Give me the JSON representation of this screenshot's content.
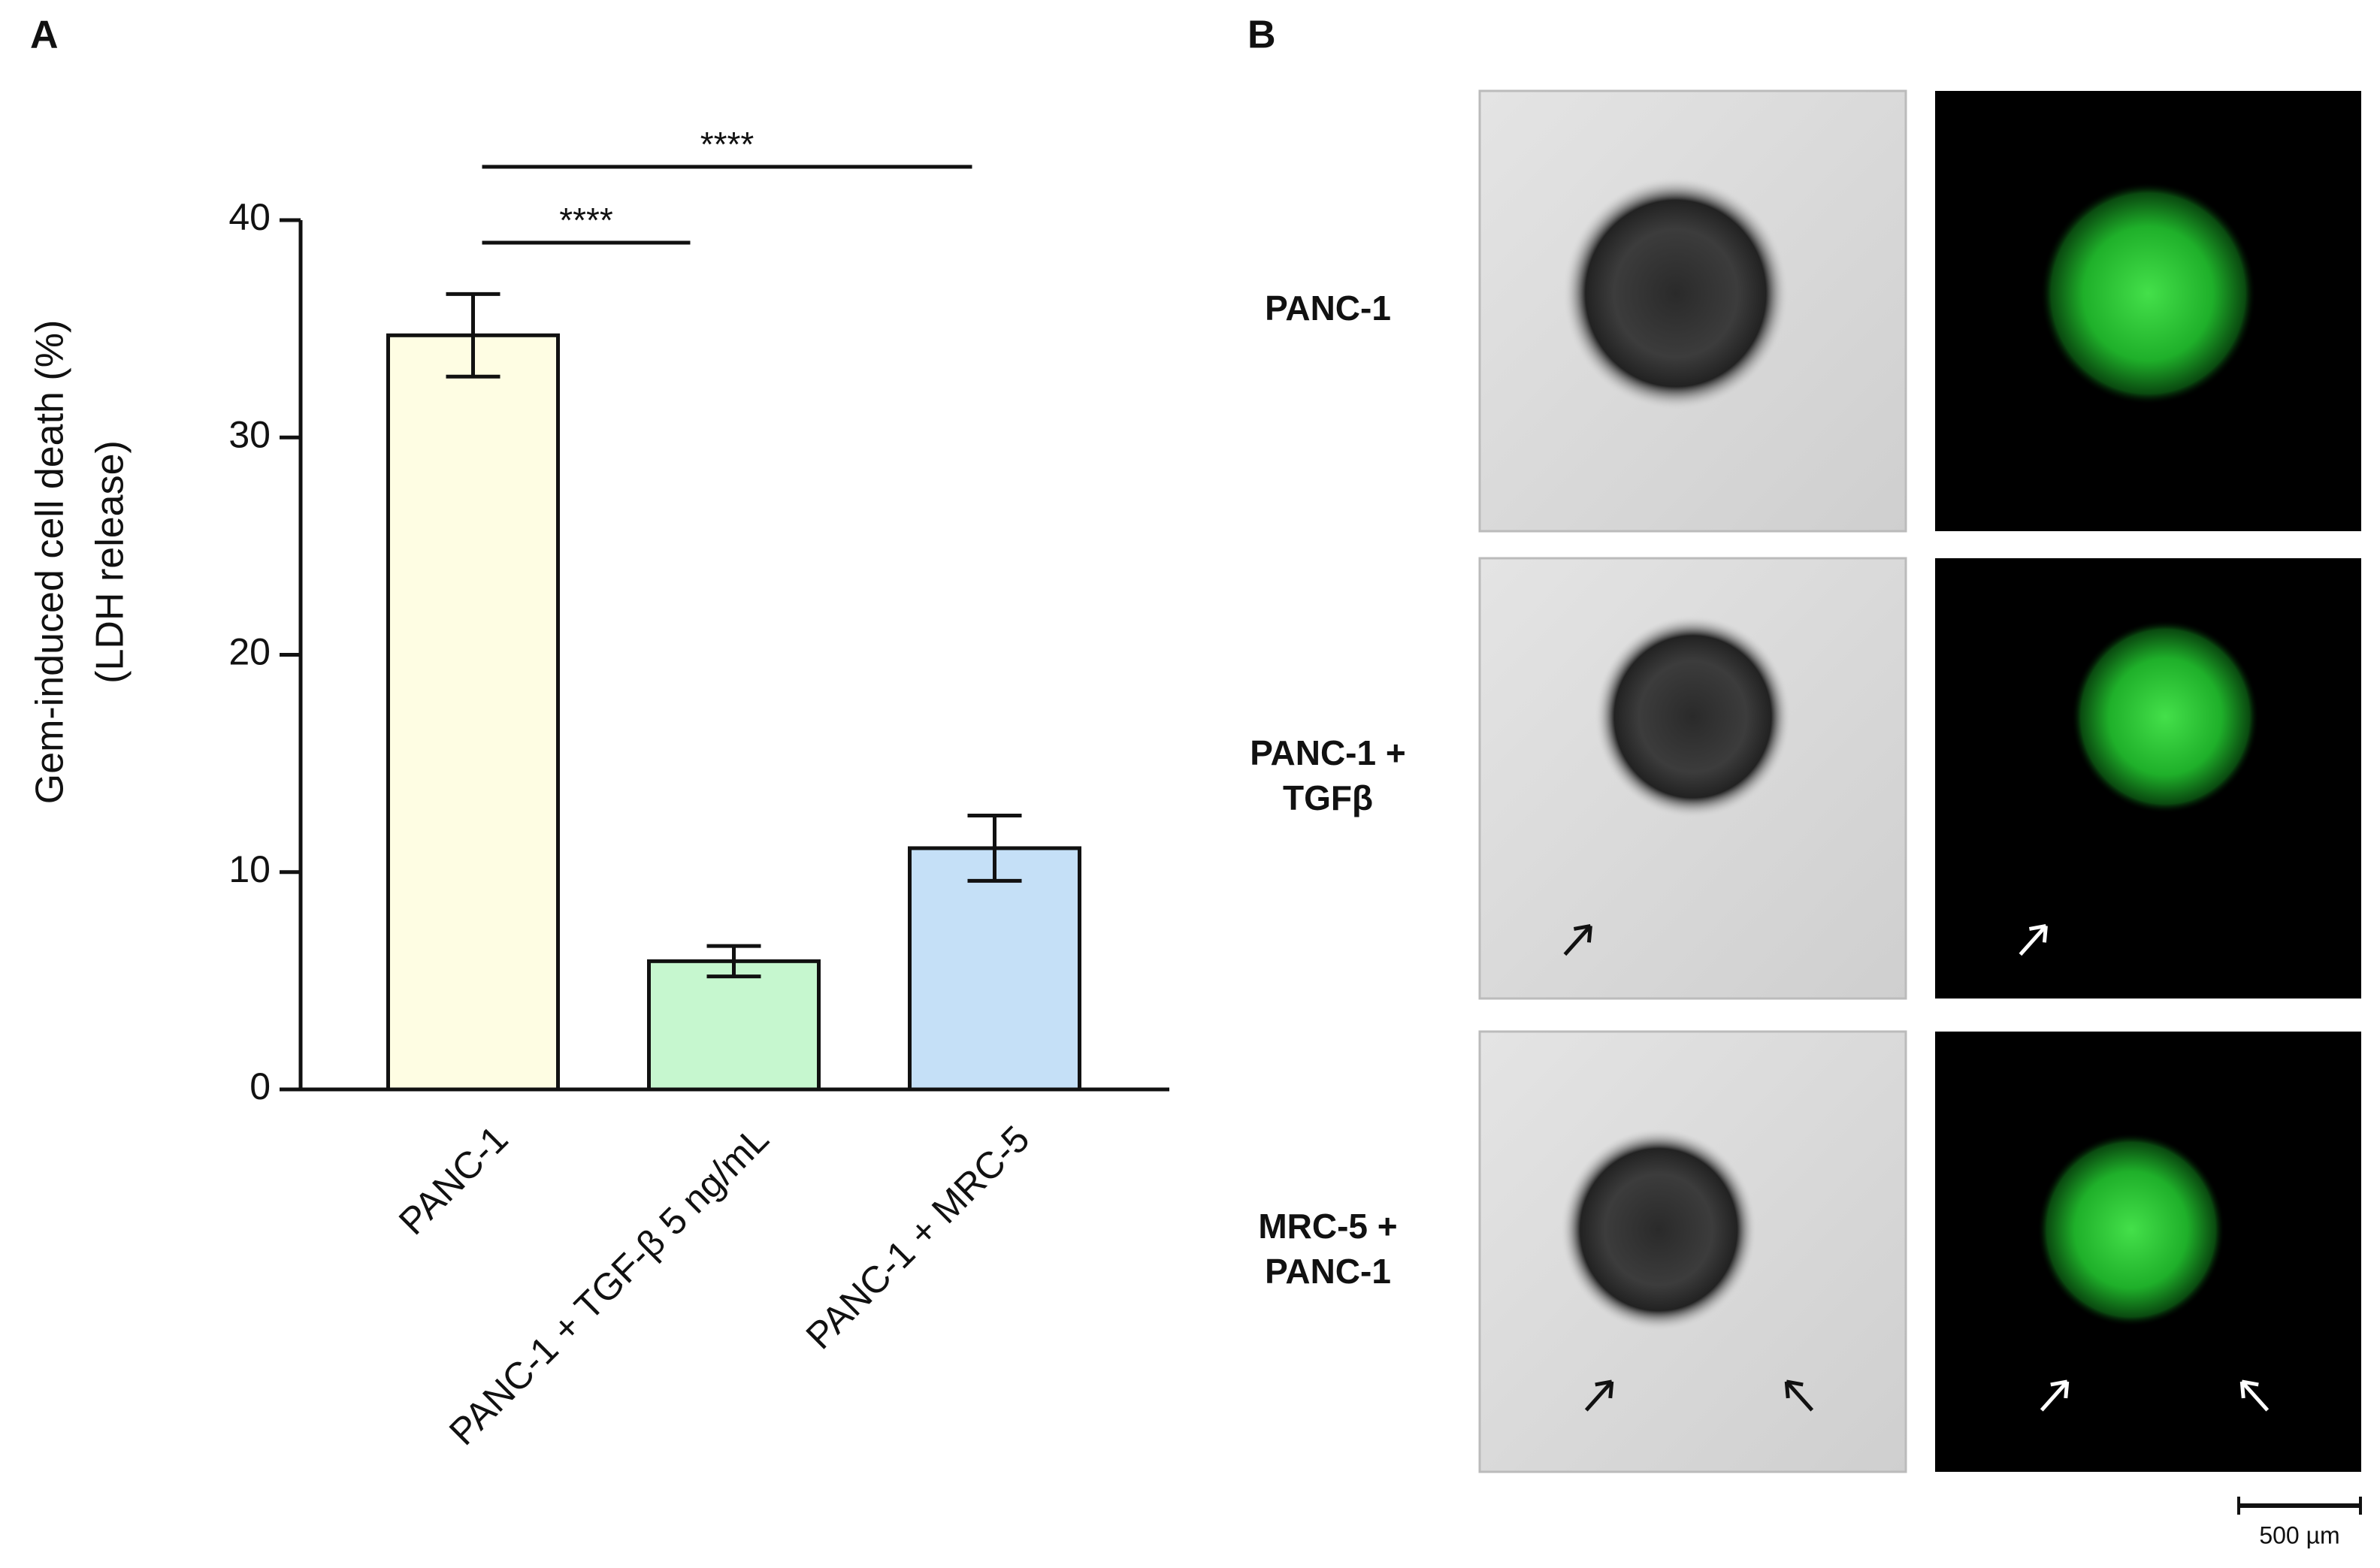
{
  "panel_labels": [
    "A",
    "B"
  ],
  "chart_data": {
    "type": "bar",
    "ylabel": [
      "Gem-induced cell death (%)",
      "(LDH release)"
    ],
    "categories": [
      "PANC-1",
      "PANC-1 + TGF-β 5 ng/mL",
      "PANC-1 + MRC-5"
    ],
    "values": [
      34.7,
      5.9,
      11.1
    ],
    "errors": [
      1.9,
      0.7,
      1.5
    ],
    "colors": [
      "#fefde3",
      "#c6f7cf",
      "#c5e0f7"
    ],
    "ylim": [
      0,
      40
    ],
    "yticks": [
      0,
      10,
      20,
      30,
      40
    ],
    "grid": false,
    "annotations": [
      "****",
      "****"
    ]
  },
  "images": {
    "rows": [
      [
        "PANC-1"
      ],
      [
        "PANC-1 +",
        "TGFβ"
      ],
      [
        "MRC-5 +",
        "PANC-1"
      ]
    ],
    "scale_bar": "500 µm"
  }
}
